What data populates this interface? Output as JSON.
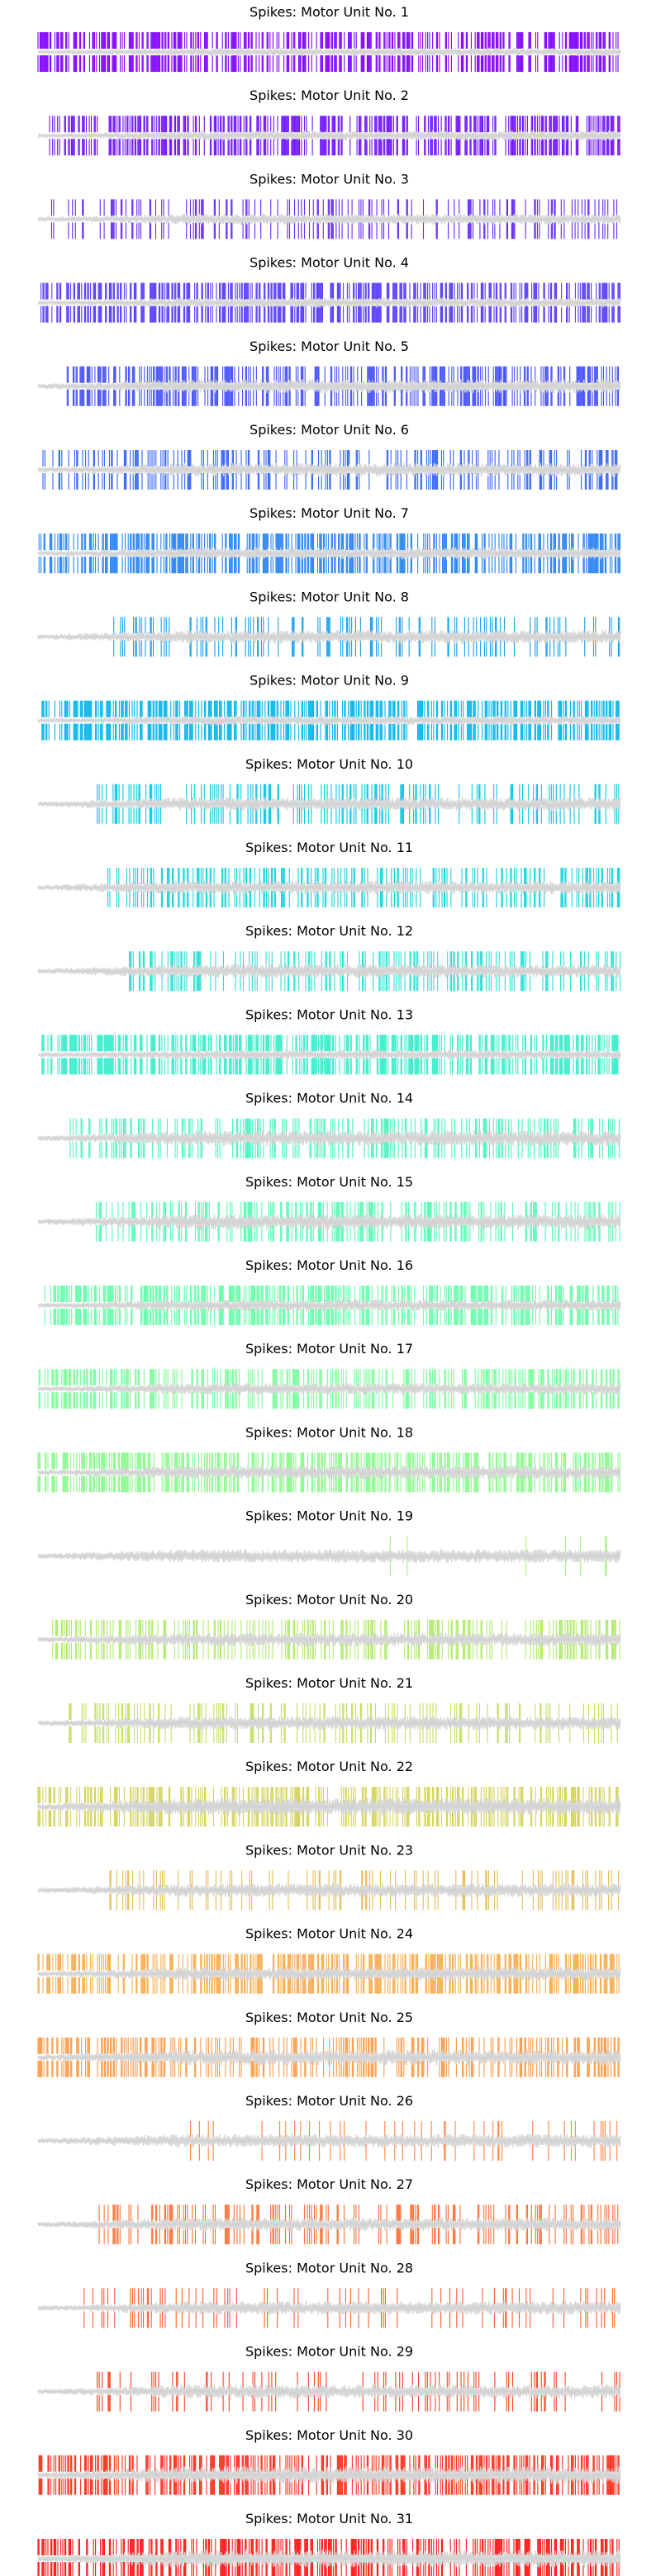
{
  "figure": {
    "background": "#ffffff",
    "signal_color": "#d3d3d3"
  },
  "chart_data": [
    {
      "type": "line",
      "title": "Spikes: Motor Unit No. 1",
      "color": "#8000ff",
      "spike_density": 0.95,
      "spike_onset": 0.0,
      "trace_amplitude": 0.22
    },
    {
      "type": "line",
      "title": "Spikes: Motor Unit No. 2",
      "color": "#7014ff",
      "spike_density": 0.95,
      "spike_onset": 0.02,
      "trace_amplitude": 0.25
    },
    {
      "type": "line",
      "title": "Spikes: Motor Unit No. 3",
      "color": "#6629fe",
      "spike_density": 0.45,
      "spike_onset": 0.02,
      "trace_amplitude": 0.28
    },
    {
      "type": "line",
      "title": "Spikes: Motor Unit No. 4",
      "color": "#563dfd",
      "spike_density": 0.95,
      "spike_onset": 0.0,
      "trace_amplitude": 0.25
    },
    {
      "type": "line",
      "title": "Spikes: Motor Unit No. 5",
      "color": "#4651fb",
      "spike_density": 0.8,
      "spike_onset": 0.05,
      "trace_amplitude": 0.35
    },
    {
      "type": "line",
      "title": "Spikes: Motor Unit No. 6",
      "color": "#3664f9",
      "spike_density": 0.55,
      "spike_onset": 0.0,
      "trace_amplitude": 0.35
    },
    {
      "type": "line",
      "title": "Spikes: Motor Unit No. 7",
      "color": "#2884f4",
      "spike_density": 0.95,
      "spike_onset": 0.0,
      "trace_amplitude": 0.3
    },
    {
      "type": "line",
      "title": "Spikes: Motor Unit No. 8",
      "color": "#18a0ef",
      "spike_density": 0.35,
      "spike_onset": 0.13,
      "trace_amplitude": 0.35
    },
    {
      "type": "line",
      "title": "Spikes: Motor Unit No. 9",
      "color": "#08b5ec",
      "spike_density": 0.95,
      "spike_onset": 0.0,
      "trace_amplitude": 0.25
    },
    {
      "type": "line",
      "title": "Spikes: Motor Unit No. 10",
      "color": "#08c8e3",
      "spike_density": 0.5,
      "spike_onset": 0.1,
      "trace_amplitude": 0.35
    },
    {
      "type": "line",
      "title": "Spikes: Motor Unit No. 11",
      "color": "#18d4dc",
      "spike_density": 0.5,
      "spike_onset": 0.12,
      "trace_amplitude": 0.35
    },
    {
      "type": "line",
      "title": "Spikes: Motor Unit No. 12",
      "color": "#2ae1d5",
      "spike_density": 0.55,
      "spike_onset": 0.15,
      "trace_amplitude": 0.35
    },
    {
      "type": "line",
      "title": "Spikes: Motor Unit No. 13",
      "color": "#3aedcb",
      "spike_density": 0.95,
      "spike_onset": 0.0,
      "trace_amplitude": 0.25
    },
    {
      "type": "line",
      "title": "Spikes: Motor Unit No. 14",
      "color": "#48f5c0",
      "spike_density": 0.55,
      "spike_onset": 0.05,
      "trace_amplitude": 0.4
    },
    {
      "type": "line",
      "title": "Spikes: Motor Unit No. 15",
      "color": "#58fbb5",
      "spike_density": 0.6,
      "spike_onset": 0.1,
      "trace_amplitude": 0.4
    },
    {
      "type": "line",
      "title": "Spikes: Motor Unit No. 16",
      "color": "#68feaa",
      "spike_density": 0.95,
      "spike_onset": 0.01,
      "trace_amplitude": 0.3
    },
    {
      "type": "line",
      "title": "Spikes: Motor Unit No. 17",
      "color": "#7cfe9c",
      "spike_density": 0.8,
      "spike_onset": 0.0,
      "trace_amplitude": 0.3
    },
    {
      "type": "line",
      "title": "Spikes: Motor Unit No. 18",
      "color": "#8cfa8e",
      "spike_density": 0.9,
      "spike_onset": 0.0,
      "trace_amplitude": 0.35
    },
    {
      "type": "line",
      "title": "Spikes: Motor Unit No. 19",
      "color": "#a0f47f",
      "spike_density": 0.03,
      "spike_onset": 0.3,
      "trace_amplitude": 0.35
    },
    {
      "type": "line",
      "title": "Spikes: Motor Unit No. 20",
      "color": "#b2ea70",
      "spike_density": 0.6,
      "spike_onset": 0.02,
      "trace_amplitude": 0.35
    },
    {
      "type": "line",
      "title": "Spikes: Motor Unit No. 21",
      "color": "#c4e062",
      "spike_density": 0.45,
      "spike_onset": 0.05,
      "trace_amplitude": 0.35
    },
    {
      "type": "line",
      "title": "Spikes: Motor Unit No. 22",
      "color": "#d4d35a",
      "spike_density": 0.75,
      "spike_onset": 0.0,
      "trace_amplitude": 0.45
    },
    {
      "type": "line",
      "title": "Spikes: Motor Unit No. 23",
      "color": "#e6bb56",
      "spike_density": 0.35,
      "spike_onset": 0.12,
      "trace_amplitude": 0.35
    },
    {
      "type": "line",
      "title": "Spikes: Motor Unit No. 24",
      "color": "#f8ad50",
      "spike_density": 0.9,
      "spike_onset": 0.0,
      "trace_amplitude": 0.35
    },
    {
      "type": "line",
      "title": "Spikes: Motor Unit No. 25",
      "color": "#fe9b48",
      "spike_density": 0.65,
      "spike_onset": 0.0,
      "trace_amplitude": 0.4
    },
    {
      "type": "line",
      "title": "Spikes: Motor Unit No. 26",
      "color": "#ff8540",
      "spike_density": 0.2,
      "spike_onset": 0.25,
      "trace_amplitude": 0.35
    },
    {
      "type": "line",
      "title": "Spikes: Motor Unit No. 27",
      "color": "#ff7238",
      "spike_density": 0.45,
      "spike_onset": 0.1,
      "trace_amplitude": 0.35
    },
    {
      "type": "line",
      "title": "Spikes: Motor Unit No. 28",
      "color": "#ff5c30",
      "spike_density": 0.25,
      "spike_onset": 0.05,
      "trace_amplitude": 0.35
    },
    {
      "type": "line",
      "title": "Spikes: Motor Unit No. 29",
      "color": "#ff4426",
      "spike_density": 0.3,
      "spike_onset": 0.1,
      "trace_amplitude": 0.35
    },
    {
      "type": "line",
      "title": "Spikes: Motor Unit No. 30",
      "color": "#ff2e1c",
      "spike_density": 0.85,
      "spike_onset": 0.0,
      "trace_amplitude": 0.45
    },
    {
      "type": "line",
      "title": "Spikes: Motor Unit No. 31",
      "color": "#ff1612",
      "spike_density": 0.8,
      "spike_onset": 0.0,
      "trace_amplitude": 0.45
    }
  ]
}
